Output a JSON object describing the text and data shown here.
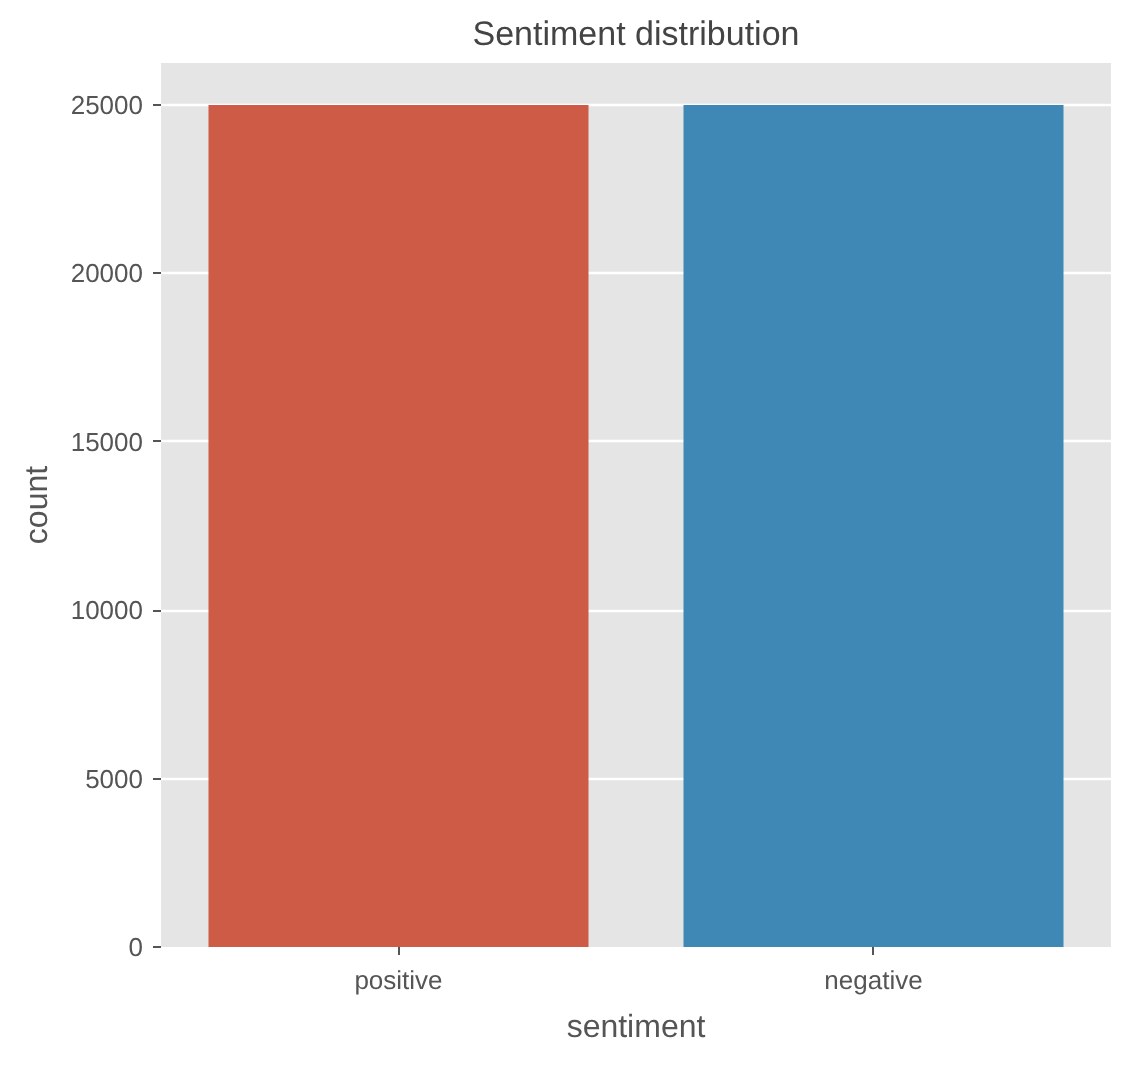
{
  "chart_data": {
    "type": "bar",
    "title": "Sentiment distribution",
    "xlabel": "sentiment",
    "ylabel": "count",
    "categories": [
      "positive",
      "negative"
    ],
    "values": [
      25000,
      25000
    ],
    "colors": [
      "#cd5b45",
      "#3f88b5"
    ],
    "ylim": [
      0,
      26250
    ],
    "yticks": [
      0,
      5000,
      10000,
      15000,
      20000,
      25000
    ],
    "grid": "y"
  }
}
